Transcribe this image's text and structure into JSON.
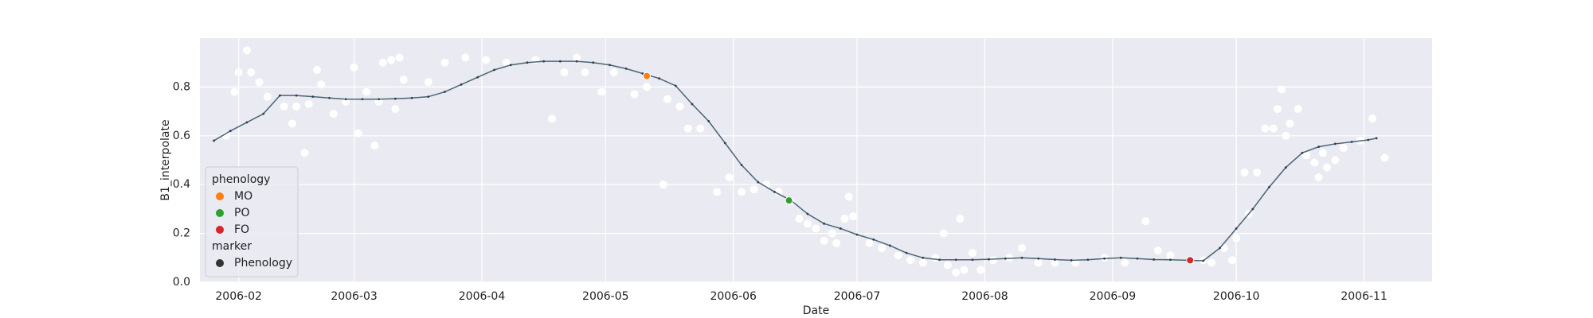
{
  "chart_data": {
    "type": "line",
    "x_label": "Date",
    "y_label": "B1_interpolate",
    "xlim": [
      13170.6,
      13469.5
    ],
    "ylim": [
      0,
      1.0
    ],
    "xticks": [
      {
        "value": 13180,
        "label": "2006-02"
      },
      {
        "value": 13208,
        "label": "2006-03"
      },
      {
        "value": 13239,
        "label": "2006-04"
      },
      {
        "value": 13269,
        "label": "2006-05"
      },
      {
        "value": 13300,
        "label": "2006-06"
      },
      {
        "value": 13330,
        "label": "2006-07"
      },
      {
        "value": 13361,
        "label": "2006-08"
      },
      {
        "value": 13392,
        "label": "2006-09"
      },
      {
        "value": 13422,
        "label": "2006-10"
      },
      {
        "value": 13453,
        "label": "2006-11"
      }
    ],
    "yticks": [
      {
        "value": 0,
        "label": "0.0"
      },
      {
        "value": 0.2,
        "label": "0.2"
      },
      {
        "value": 0.4,
        "label": "0.4"
      },
      {
        "value": 0.6,
        "label": "0.6"
      },
      {
        "value": 0.8,
        "label": "0.8"
      }
    ],
    "grid": true,
    "background": "#eaeaf2",
    "series": [
      {
        "type": "scatter",
        "color": "#ffffff",
        "x": [
          13177,
          13179,
          13180,
          13182,
          13183,
          13185,
          13187,
          13191,
          13193,
          13194,
          13196,
          13197,
          13199,
          13200,
          13203,
          13206,
          13208,
          13209,
          13211,
          13213,
          13214,
          13215,
          13217,
          13218,
          13219,
          13220,
          13226,
          13230,
          13235,
          13240,
          13245,
          13252,
          13256,
          13259,
          13262,
          13264,
          13268,
          13271,
          13276,
          13279,
          13283,
          13284,
          13287,
          13289,
          13292,
          13296,
          13299,
          13302,
          13305,
          13308,
          13311,
          13314,
          13316,
          13318,
          13320,
          13322,
          13324,
          13325,
          13327,
          13328,
          13329,
          13333,
          13336,
          13340,
          13343,
          13346,
          13349,
          13351,
          13352,
          13354,
          13355,
          13356,
          13358,
          13360,
          13363,
          13367,
          13370,
          13374,
          13378,
          13383,
          13390,
          13395,
          13400,
          13403,
          13406,
          13411,
          13414,
          13416,
          13419,
          13421,
          13422,
          13424,
          13425,
          13427,
          13429,
          13431,
          13432,
          13433,
          13434,
          13435,
          13437,
          13439,
          13441,
          13442,
          13443,
          13444,
          13446,
          13448,
          13452,
          13455,
          13458
        ],
        "values": [
          0.6,
          0.78,
          0.86,
          0.95,
          0.86,
          0.82,
          0.76,
          0.72,
          0.65,
          0.72,
          0.53,
          0.73,
          0.87,
          0.81,
          0.69,
          0.74,
          0.88,
          0.61,
          0.78,
          0.56,
          0.74,
          0.9,
          0.91,
          0.71,
          0.92,
          0.83,
          0.82,
          0.9,
          0.92,
          0.91,
          0.9,
          0.91,
          0.67,
          0.86,
          0.92,
          0.86,
          0.78,
          0.86,
          0.77,
          0.8,
          0.4,
          0.75,
          0.72,
          0.63,
          0.63,
          0.37,
          0.43,
          0.37,
          0.38,
          0.4,
          0.37,
          0.33,
          0.26,
          0.24,
          0.22,
          0.17,
          0.2,
          0.16,
          0.26,
          0.35,
          0.27,
          0.16,
          0.14,
          0.11,
          0.09,
          0.08,
          0.1,
          0.2,
          0.07,
          0.04,
          0.26,
          0.05,
          0.12,
          0.05,
          0.09,
          0.1,
          0.14,
          0.08,
          0.08,
          0.08,
          0.1,
          0.08,
          0.25,
          0.13,
          0.11,
          0.09,
          0.09,
          0.08,
          0.14,
          0.09,
          0.18,
          0.45,
          0.28,
          0.45,
          0.63,
          0.63,
          0.71,
          0.79,
          0.6,
          0.65,
          0.71,
          0.52,
          0.49,
          0.43,
          0.53,
          0.47,
          0.5,
          0.55,
          0.58,
          0.67,
          0.51
        ]
      },
      {
        "type": "line",
        "color": "#4a6577",
        "x": [
          13174,
          13178,
          13182,
          13186,
          13190,
          13194,
          13198,
          13202,
          13206,
          13210,
          13214,
          13218,
          13222,
          13226,
          13230,
          13234,
          13238,
          13242,
          13246,
          13250,
          13254,
          13258,
          13262,
          13266,
          13270,
          13274,
          13278,
          13282,
          13286,
          13290,
          13294,
          13298,
          13302,
          13306,
          13310,
          13314,
          13318,
          13322,
          13326,
          13330,
          13334,
          13338,
          13342,
          13346,
          13350,
          13354,
          13358,
          13362,
          13366,
          13370,
          13374,
          13378,
          13382,
          13386,
          13390,
          13394,
          13398,
          13402,
          13406,
          13410,
          13414,
          13418,
          13422,
          13426,
          13430,
          13434,
          13438,
          13442,
          13446,
          13450,
          13454,
          13456
        ],
        "values": [
          0.58,
          0.62,
          0.655,
          0.69,
          0.765,
          0.765,
          0.76,
          0.755,
          0.75,
          0.75,
          0.75,
          0.752,
          0.755,
          0.76,
          0.78,
          0.81,
          0.84,
          0.87,
          0.89,
          0.9,
          0.905,
          0.905,
          0.905,
          0.9,
          0.89,
          0.875,
          0.855,
          0.835,
          0.805,
          0.73,
          0.66,
          0.57,
          0.48,
          0.41,
          0.37,
          0.335,
          0.28,
          0.24,
          0.22,
          0.195,
          0.175,
          0.15,
          0.12,
          0.1,
          0.092,
          0.092,
          0.092,
          0.094,
          0.097,
          0.1,
          0.097,
          0.093,
          0.09,
          0.092,
          0.097,
          0.1,
          0.097,
          0.093,
          0.092,
          0.09,
          0.088,
          0.14,
          0.22,
          0.3,
          0.39,
          0.47,
          0.53,
          0.555,
          0.567,
          0.575,
          0.583,
          0.59
        ]
      },
      {
        "type": "scatter",
        "name": "MO",
        "color": "#ff7f0e",
        "x": [
          13279
        ],
        "values": [
          0.845
        ]
      },
      {
        "type": "scatter",
        "name": "PO",
        "color": "#2ca02c",
        "x": [
          13313.5
        ],
        "values": [
          0.335
        ]
      },
      {
        "type": "scatter",
        "name": "FO",
        "color": "#d62728",
        "x": [
          13410.8
        ],
        "values": [
          0.09
        ]
      }
    ],
    "legend": {
      "corner": "lower left",
      "title": "phenology",
      "style_title": "marker",
      "style_entries": [
        "Phenology"
      ],
      "style_color": "#333333"
    }
  }
}
